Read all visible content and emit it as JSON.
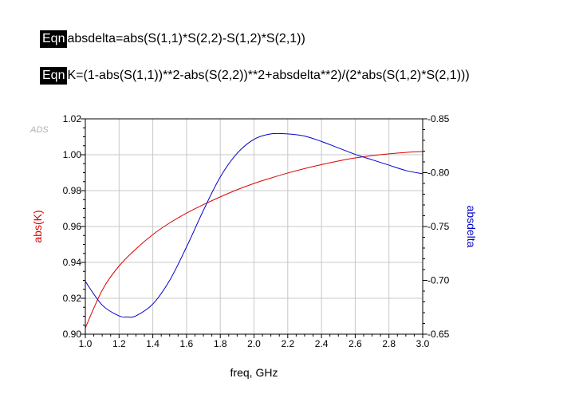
{
  "equations": [
    {
      "tag": "Eqn",
      "text": "absdelta=abs(S(1,1)*S(2,2)-S(1,2)*S(2,1))"
    },
    {
      "tag": "Eqn",
      "text": "K=(1-abs(S(1,1))**2-abs(S(2,2))**2+absdelta**2)/(2*abs(S(1,2)*S(2,1)))"
    }
  ],
  "watermark": "ADS",
  "chart_data": {
    "type": "line",
    "xlabel": "freq, GHz",
    "xlim": [
      1.0,
      3.0
    ],
    "x_ticks": [
      "1.0",
      "1.2",
      "1.4",
      "1.6",
      "1.8",
      "2.0",
      "2.2",
      "2.4",
      "2.6",
      "2.8",
      "3.0"
    ],
    "y_left": {
      "label": "abs(K)",
      "color": "#dd0000",
      "lim": [
        0.9,
        1.02
      ],
      "ticks": [
        "0.90",
        "0.92",
        "0.94",
        "0.96",
        "0.98",
        "1.00",
        "1.02"
      ]
    },
    "y_right": {
      "label": "absdelta",
      "color": "#0000cc",
      "lim": [
        0.65,
        0.85
      ],
      "ticks": [
        "0.65",
        "0.70",
        "0.75",
        "0.80",
        "0.85"
      ]
    },
    "grid": true,
    "series": [
      {
        "axis": "left",
        "color": "#dd0000",
        "x": [
          1.0,
          1.1,
          1.2,
          1.3,
          1.4,
          1.5,
          1.6,
          1.7,
          1.8,
          1.9,
          2.0,
          2.1,
          2.2,
          2.3,
          2.4,
          2.5,
          2.6,
          2.7,
          2.8,
          2.9,
          3.0
        ],
        "y": [
          0.9035,
          0.9245,
          0.938,
          0.9475,
          0.9555,
          0.962,
          0.9675,
          0.9722,
          0.9765,
          0.9805,
          0.984,
          0.987,
          0.9898,
          0.9923,
          0.9945,
          0.9965,
          0.9982,
          0.9995,
          1.0005,
          1.0013,
          1.0018
        ]
      },
      {
        "axis": "right",
        "color": "#0000cc",
        "x": [
          1.0,
          1.1,
          1.2,
          1.25,
          1.3,
          1.4,
          1.5,
          1.6,
          1.7,
          1.8,
          1.9,
          2.0,
          2.1,
          2.2,
          2.3,
          2.4,
          2.5,
          2.6,
          2.7,
          2.8,
          2.9,
          3.0
        ],
        "y": [
          0.699,
          0.677,
          0.667,
          0.666,
          0.667,
          0.678,
          0.7,
          0.731,
          0.765,
          0.796,
          0.818,
          0.831,
          0.836,
          0.836,
          0.834,
          0.829,
          0.823,
          0.817,
          0.812,
          0.807,
          0.802,
          0.799
        ]
      }
    ]
  }
}
